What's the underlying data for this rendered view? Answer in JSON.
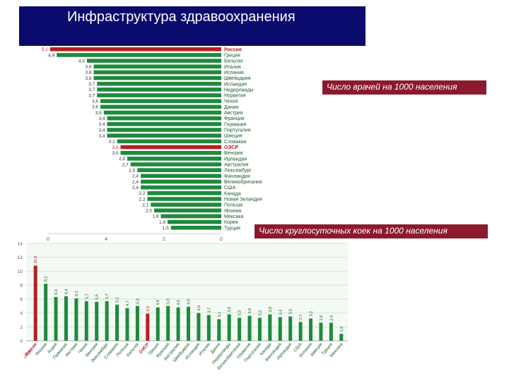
{
  "header": {
    "title": "Инфраструктура здравоохранения"
  },
  "captions": {
    "doctors": "Число врачей на 1000 населения",
    "beds": "Число круглосуточных коек на 1000 населения"
  },
  "colors": {
    "bar": "#1e8a3c",
    "highlight": "#b22222",
    "title_bg": "#0b0b6e",
    "caption_bg": "#8b1a2e",
    "grid": "#c8e0c8"
  },
  "chart_data": [
    {
      "type": "bar",
      "orientation": "horizontal",
      "categories": [
        "Россия",
        "Греция",
        "Бельгия",
        "Италия",
        "Испания",
        "Швейцария",
        "Исландия",
        "Нидерланды",
        "Норвегия",
        "Чехия",
        "Дания",
        "Австрия",
        "Франция",
        "Германия",
        "Португалия",
        "Швеция",
        "Словакия",
        "ОЭСР",
        "Венгрия",
        "Ирландия",
        "Австралия",
        "Люксембург",
        "Финляндия",
        "Великобритания",
        "США",
        "Канада",
        "Новая Зеландия",
        "Польша",
        "Япония",
        "Мексика",
        "Корея",
        "Турция"
      ],
      "values": [
        5.1,
        4.9,
        4.0,
        3.8,
        3.8,
        3.8,
        3.7,
        3.7,
        3.7,
        3.6,
        3.6,
        3.5,
        3.4,
        3.4,
        3.4,
        3.4,
        3.1,
        3.0,
        3.0,
        2.8,
        2.7,
        2.5,
        2.4,
        2.4,
        2.4,
        2.2,
        2.2,
        2.1,
        2.0,
        1.8,
        1.6,
        1.5
      ],
      "value_labels": [
        "5,1",
        "4,9",
        "4,0",
        "3,8",
        "3,8",
        "3,8",
        "3,7",
        "3,7",
        "3,7",
        "3,6",
        "3,6",
        "3,5",
        "3,4",
        "3,4",
        "3,4",
        "3,4",
        "3,1",
        "3,0",
        "3,0",
        "2,8",
        "2,7",
        "2,5",
        "2,4",
        "2,4",
        "2,4",
        "2,2",
        "2,2",
        "2,1",
        "2,0",
        "1,8",
        "1,6",
        "1,5"
      ],
      "highlight": [
        "Россия",
        "ОЭСР"
      ],
      "x_ticks": [
        "0",
        "4",
        "2",
        "0"
      ],
      "xlim": [
        0,
        5.2
      ]
    },
    {
      "type": "bar",
      "categories": [
        "Россия",
        "Япония",
        "Корея",
        "Германия",
        "Австрия",
        "Чехия",
        "Венгрия",
        "Люксембург",
        "Словакия",
        "Польша",
        "Бельгия",
        "ОЭСР",
        "Греция",
        "Франция",
        "Австралия",
        "Швейцария",
        "Исландия",
        "Италия",
        "Дания",
        "Нидерланды",
        "Великобритания",
        "Норвегия",
        "Португалия",
        "Канада",
        "Финляндия",
        "Ирландия",
        "США",
        "Испания",
        "Швеция",
        "Турция",
        "Мексика"
      ],
      "values": [
        10.8,
        8.2,
        6.3,
        6.4,
        6.1,
        5.7,
        5.6,
        5.7,
        5.2,
        4.7,
        5.0,
        3.9,
        4.8,
        5.0,
        4.8,
        4.9,
        4.0,
        3.7,
        3.1,
        3.8,
        3.3,
        3.6,
        3.3,
        3.8,
        3.4,
        3.5,
        2.7,
        3.2,
        2.6,
        2.6,
        1.0
      ],
      "value_labels": [
        "10,8",
        "8,2",
        "6,3",
        "6,4",
        "6,1",
        "5,7",
        "5,6",
        "5,7",
        "5,2",
        "4,7",
        "5,0",
        "3,9",
        "4,8",
        "5,0",
        "4,8",
        "4,9",
        "4,0",
        "3,7",
        "3,1",
        "3,8",
        "3,3",
        "3,6",
        "3,3",
        "3,8",
        "3,4",
        "3,5",
        "2,7",
        "3,2",
        "2,6",
        "2,6",
        "1,0"
      ],
      "highlight": [
        "Россия",
        "ОЭСР"
      ],
      "russia_note": "(2005)",
      "y_ticks": [
        "0",
        "2",
        "4",
        "6",
        "8",
        "10",
        "12",
        "14"
      ],
      "ylim": [
        0,
        14
      ],
      "grid": true
    }
  ]
}
